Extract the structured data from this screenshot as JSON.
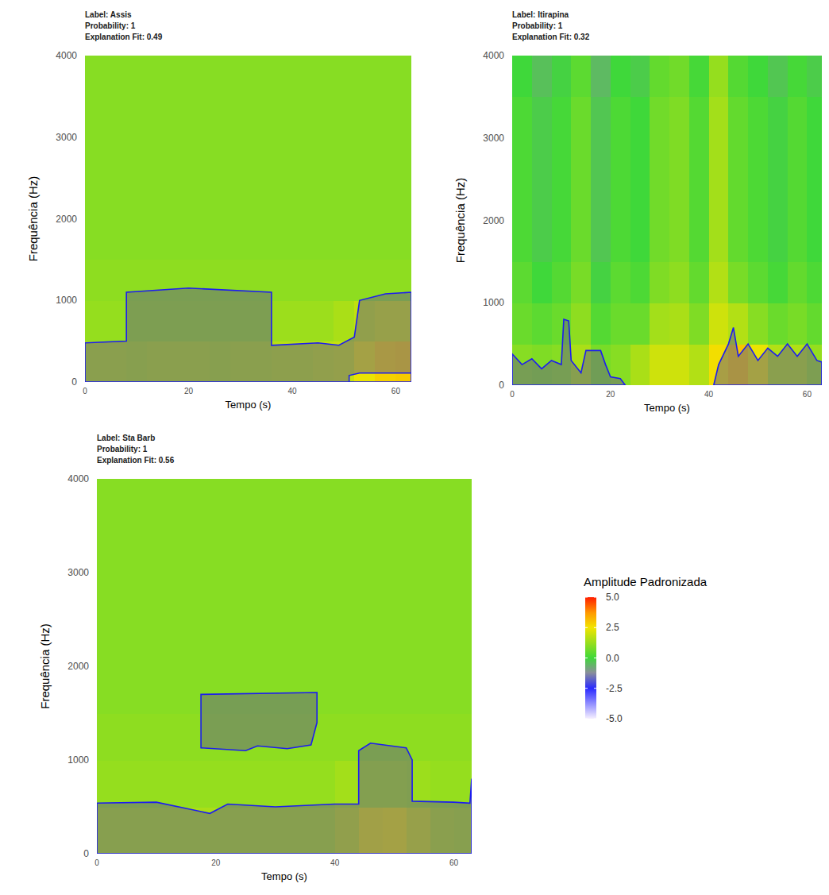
{
  "chart_data": [
    {
      "type": "heatmap",
      "title_lines": [
        "Label: Assis",
        "Probability: 1",
        "Explanation Fit: 0.49"
      ],
      "xlabel": "Tempo (s)",
      "ylabel": "Frequência (Hz)",
      "xlim": [
        0,
        63
      ],
      "ylim": [
        0,
        4000
      ],
      "xticks": [
        0,
        20,
        40,
        60
      ],
      "yticks": [
        0,
        1000,
        2000,
        3000,
        4000
      ],
      "time_edges": [
        0,
        4,
        8,
        12,
        16,
        20,
        24,
        28,
        32,
        36,
        40,
        44,
        48,
        52,
        56,
        60,
        63
      ],
      "freq_edges": [
        0,
        500,
        1000,
        1500,
        2000,
        2500,
        3000,
        3500,
        4000
      ],
      "amplitude": [
        [
          1.6,
          1.6,
          1.5,
          1.6,
          1.6,
          1.6,
          1.5,
          1.6,
          1.6,
          1.7,
          1.7,
          1.8,
          1.9,
          2.4,
          2.8,
          2.9
        ],
        [
          1.2,
          1.2,
          1.2,
          1.2,
          1.2,
          1.2,
          1.2,
          1.2,
          1.2,
          1.3,
          1.3,
          1.3,
          1.5,
          1.8,
          2.0,
          2.0
        ],
        [
          1.1,
          1.1,
          1.1,
          1.1,
          1.1,
          1.1,
          1.1,
          1.1,
          1.1,
          1.1,
          1.1,
          1.1,
          1.1,
          1.1,
          1.1,
          1.1
        ],
        [
          1.0,
          1.0,
          1.0,
          1.0,
          1.0,
          1.0,
          1.0,
          1.0,
          1.0,
          1.0,
          1.0,
          1.0,
          1.0,
          1.0,
          1.0,
          1.0
        ],
        [
          1.0,
          1.0,
          1.0,
          1.0,
          1.0,
          1.0,
          1.0,
          1.0,
          1.0,
          1.0,
          1.0,
          1.0,
          1.0,
          1.0,
          1.0,
          1.0
        ],
        [
          1.0,
          1.0,
          1.0,
          1.0,
          1.0,
          1.0,
          1.0,
          1.0,
          1.0,
          1.0,
          1.0,
          1.0,
          1.0,
          1.0,
          1.0,
          1.0
        ],
        [
          1.0,
          1.0,
          1.0,
          1.0,
          1.0,
          1.0,
          1.0,
          1.0,
          1.0,
          1.0,
          1.0,
          1.0,
          1.0,
          1.0,
          1.0,
          1.0
        ],
        [
          1.0,
          1.0,
          1.0,
          1.0,
          1.0,
          1.0,
          1.0,
          1.0,
          1.0,
          1.0,
          1.0,
          1.0,
          1.0,
          1.0,
          1.0,
          1.0
        ]
      ],
      "explanation_regions": [
        [
          [
            [
              0,
              0
            ],
            [
              0,
              480
            ],
            [
              8,
              500
            ],
            [
              8,
              1100
            ],
            [
              20,
              1150
            ],
            [
              36,
              1100
            ],
            [
              36,
              450
            ],
            [
              45,
              480
            ],
            [
              49,
              450
            ],
            [
              52,
              550
            ],
            [
              53,
              1000
            ],
            [
              58,
              1080
            ],
            [
              63,
              1100
            ],
            [
              63,
              0
            ]
          ],
          [
            [
              51,
              0
            ],
            [
              51,
              80
            ],
            [
              53,
              110
            ],
            [
              63,
              110
            ],
            [
              63,
              0
            ]
          ]
        ]
      ]
    },
    {
      "type": "heatmap",
      "title_lines": [
        "Label: Itirapina",
        "Probability: 1",
        "Explanation Fit: 0.32"
      ],
      "xlabel": "Tempo (s)",
      "ylabel": "Frequência (Hz)",
      "xlim": [
        0,
        63
      ],
      "ylim": [
        0,
        4000
      ],
      "xticks": [
        0,
        20,
        40,
        60
      ],
      "yticks": [
        0,
        1000,
        2000,
        3000,
        4000
      ],
      "time_edges": [
        0,
        4,
        8,
        12,
        16,
        20,
        24,
        28,
        32,
        36,
        40,
        44,
        48,
        52,
        56,
        60,
        63
      ],
      "freq_edges": [
        0,
        500,
        1000,
        1500,
        2000,
        2500,
        3000,
        3500,
        4000
      ],
      "amplitude": [
        [
          1.0,
          0.9,
          1.0,
          1.5,
          0.8,
          1.0,
          1.5,
          2.0,
          2.0,
          1.6,
          2.6,
          3.0,
          2.4,
          1.6,
          1.6,
          1.2
        ],
        [
          0.6,
          0.4,
          0.6,
          1.1,
          0.3,
          0.6,
          0.6,
          1.4,
          1.5,
          0.9,
          2.0,
          1.6,
          1.0,
          0.6,
          0.8,
          0.5
        ],
        [
          0.4,
          0.0,
          0.3,
          0.8,
          -0.1,
          0.4,
          0.2,
          0.9,
          1.1,
          0.5,
          1.6,
          0.8,
          0.4,
          0.1,
          0.5,
          0.2
        ],
        [
          0.2,
          -0.2,
          0.1,
          0.6,
          -0.3,
          0.2,
          0.0,
          0.7,
          0.9,
          0.3,
          1.4,
          0.5,
          0.2,
          -0.1,
          0.3,
          0.0
        ],
        [
          0.2,
          -0.2,
          0.1,
          0.6,
          -0.3,
          0.2,
          0.0,
          0.7,
          0.9,
          0.3,
          1.4,
          0.5,
          0.2,
          -0.1,
          0.3,
          0.0
        ],
        [
          0.2,
          -0.2,
          0.1,
          0.6,
          -0.3,
          0.2,
          0.0,
          0.7,
          0.9,
          0.3,
          1.4,
          0.5,
          0.2,
          -0.1,
          0.3,
          0.0
        ],
        [
          0.2,
          -0.2,
          0.1,
          0.6,
          -0.3,
          0.2,
          0.0,
          0.7,
          0.9,
          0.3,
          1.4,
          0.5,
          0.2,
          -0.1,
          0.3,
          0.0
        ],
        [
          0.0,
          -0.4,
          -0.1,
          0.4,
          -0.5,
          0.0,
          -0.2,
          0.5,
          0.7,
          0.1,
          1.2,
          0.3,
          0.0,
          -0.3,
          0.1,
          -0.2
        ]
      ],
      "explanation_regions": [
        [
          [
            [
              0,
              0
            ],
            [
              0,
              380
            ],
            [
              2,
              250
            ],
            [
              4,
              320
            ],
            [
              6,
              200
            ],
            [
              8,
              300
            ],
            [
              10,
              250
            ],
            [
              10.5,
              800
            ],
            [
              11.5,
              780
            ],
            [
              12,
              300
            ],
            [
              14,
              150
            ],
            [
              15,
              420
            ],
            [
              18,
              420
            ],
            [
              19,
              250
            ],
            [
              20,
              100
            ],
            [
              22,
              80
            ],
            [
              23,
              0
            ]
          ]
        ],
        [
          [
            [
              41,
              0
            ],
            [
              42,
              250
            ],
            [
              44,
              500
            ],
            [
              45,
              700
            ],
            [
              46,
              350
            ],
            [
              48,
              500
            ],
            [
              50,
              300
            ],
            [
              52,
              450
            ],
            [
              54,
              350
            ],
            [
              56,
              500
            ],
            [
              58,
              350
            ],
            [
              60,
              500
            ],
            [
              62,
              300
            ],
            [
              63,
              280
            ],
            [
              63,
              0
            ]
          ]
        ]
      ]
    },
    {
      "type": "heatmap",
      "title_lines": [
        "Label: Sta Barb",
        "Probability: 1",
        "Explanation Fit: 0.56"
      ],
      "xlabel": "Tempo (s)",
      "ylabel": "Frequência (Hz)",
      "xlim": [
        0,
        63
      ],
      "ylim": [
        0,
        4000
      ],
      "xticks": [
        0,
        20,
        40,
        60
      ],
      "yticks": [
        0,
        1000,
        2000,
        3000,
        4000
      ],
      "time_edges": [
        0,
        4,
        8,
        12,
        16,
        20,
        24,
        28,
        32,
        36,
        40,
        44,
        48,
        52,
        56,
        60,
        63
      ],
      "freq_edges": [
        0,
        500,
        1000,
        1500,
        2000,
        2500,
        3000,
        3500,
        4000
      ],
      "amplitude": [
        [
          1.5,
          1.5,
          1.5,
          1.5,
          1.5,
          1.5,
          1.5,
          1.5,
          1.5,
          1.5,
          1.8,
          2.3,
          2.4,
          2.0,
          1.6,
          1.5
        ],
        [
          1.2,
          1.2,
          1.2,
          1.2,
          1.2,
          1.2,
          1.2,
          1.2,
          1.2,
          1.2,
          1.4,
          1.4,
          1.4,
          1.3,
          1.2,
          1.2
        ],
        [
          1.1,
          1.1,
          1.1,
          1.1,
          1.1,
          1.1,
          1.1,
          1.1,
          1.1,
          1.1,
          1.1,
          1.1,
          1.1,
          1.1,
          1.1,
          1.1
        ],
        [
          1.0,
          1.0,
          1.0,
          1.0,
          1.0,
          1.0,
          1.0,
          1.0,
          1.0,
          1.0,
          1.0,
          1.0,
          1.0,
          1.0,
          1.0,
          1.0
        ],
        [
          1.0,
          1.0,
          1.0,
          1.0,
          1.0,
          1.0,
          1.0,
          1.0,
          1.0,
          1.0,
          1.0,
          1.0,
          1.0,
          1.0,
          1.0,
          1.0
        ],
        [
          1.0,
          1.0,
          1.0,
          1.0,
          1.0,
          1.0,
          1.0,
          1.0,
          1.0,
          1.0,
          1.0,
          1.0,
          1.0,
          1.0,
          1.0,
          1.0
        ],
        [
          1.0,
          1.0,
          1.0,
          1.0,
          1.0,
          1.0,
          1.0,
          1.0,
          1.0,
          1.0,
          1.0,
          1.0,
          1.0,
          1.0,
          1.0,
          1.0
        ],
        [
          1.0,
          1.0,
          1.0,
          1.0,
          1.0,
          1.0,
          1.0,
          1.0,
          1.0,
          1.0,
          1.0,
          1.0,
          1.0,
          1.0,
          1.0,
          1.0
        ]
      ],
      "explanation_regions": [
        [
          [
            [
              0,
              0
            ],
            [
              0,
              540
            ],
            [
              10,
              550
            ],
            [
              19,
              430
            ],
            [
              22,
              530
            ],
            [
              30,
              500
            ],
            [
              40,
              530
            ],
            [
              44,
              530
            ],
            [
              44,
              1100
            ],
            [
              46,
              1180
            ],
            [
              52,
              1130
            ],
            [
              53,
              1000
            ],
            [
              53,
              560
            ],
            [
              60,
              550
            ],
            [
              62.7,
              540
            ],
            [
              63,
              800
            ],
            [
              63,
              0
            ]
          ]
        ],
        [
          [
            [
              17.5,
              1700
            ],
            [
              37,
              1720
            ],
            [
              37,
              1400
            ],
            [
              36,
              1160
            ],
            [
              32,
              1120
            ],
            [
              27,
              1150
            ],
            [
              25,
              1100
            ],
            [
              17.5,
              1130
            ]
          ]
        ]
      ]
    }
  ],
  "color_scale": {
    "title": "Amplitude Padronizada",
    "range": [
      -5,
      5
    ],
    "ticks": [
      {
        "value": 5,
        "label": "5.0"
      },
      {
        "value": 2.5,
        "label": "2.5"
      },
      {
        "value": 0,
        "label": "0.0"
      },
      {
        "value": -2.5,
        "label": "-2.5"
      },
      {
        "value": -5,
        "label": "-5.0"
      }
    ]
  }
}
